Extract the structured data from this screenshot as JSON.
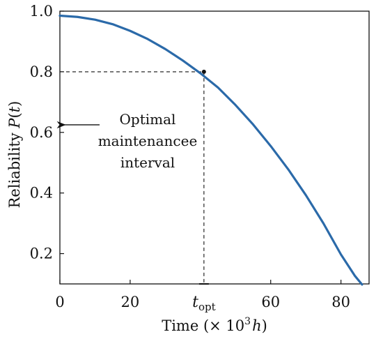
{
  "chart_data": {
    "type": "line",
    "xlabel": {
      "prefix": "Time (",
      "mult": "× 10",
      "exp": "3",
      "unit": "h",
      "suffix": ")"
    },
    "ylabel": {
      "main": "Reliability ",
      "func": "P",
      "paren_open": "(",
      "var": "t",
      "paren_close": ")"
    },
    "xlim": [
      0,
      88
    ],
    "ylim": [
      0.1,
      1.0
    ],
    "x_ticks": [
      {
        "value": 0,
        "label": "0"
      },
      {
        "value": 20,
        "label": "20"
      },
      {
        "value": 60,
        "label": "60"
      },
      {
        "value": 80,
        "label": "80"
      }
    ],
    "y_ticks": [
      {
        "value": 1.0,
        "label": "1.0"
      },
      {
        "value": 0.8,
        "label": "0.8"
      },
      {
        "value": 0.6,
        "label": "0.6"
      },
      {
        "value": 0.4,
        "label": "0.4"
      },
      {
        "value": 0.2,
        "label": "0.2"
      }
    ],
    "series": [
      {
        "color": "#2b6aa9",
        "x": [
          0,
          5,
          10,
          15,
          20,
          25,
          30,
          35,
          40,
          45,
          50,
          55,
          60,
          65,
          70,
          75,
          80,
          84,
          86
        ],
        "y": [
          0.985,
          0.981,
          0.972,
          0.957,
          0.935,
          0.908,
          0.875,
          0.837,
          0.795,
          0.748,
          0.69,
          0.626,
          0.555,
          0.478,
          0.393,
          0.3,
          0.197,
          0.126,
          0.098
        ]
      }
    ],
    "optimum": {
      "x": 41,
      "y": 0.8,
      "tick_label_main": "t",
      "tick_label_sub": "opt"
    },
    "annotation": {
      "lines": [
        "Optimal",
        "maintenancee",
        "interval"
      ],
      "arrow_target_y": 0.625
    },
    "grid": false,
    "legend": "none"
  }
}
